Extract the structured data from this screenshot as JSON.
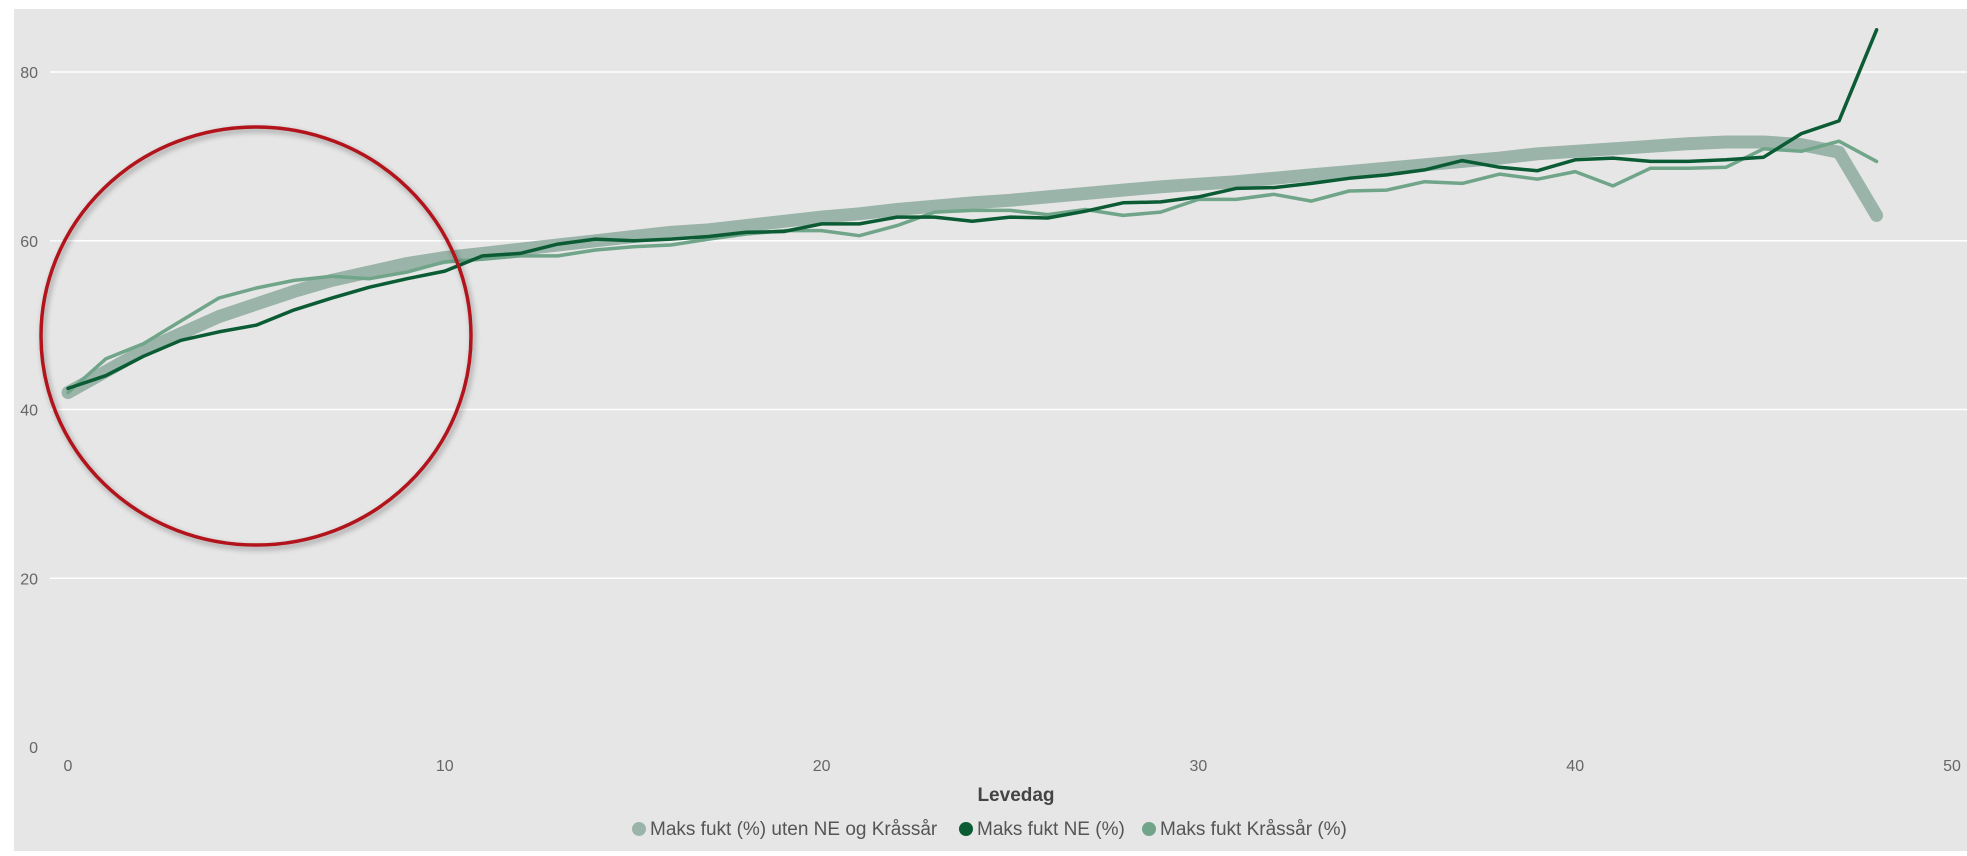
{
  "chart_data": {
    "type": "line",
    "title": "",
    "xlabel": "Levedag",
    "ylabel": "",
    "xlim": [
      0,
      50
    ],
    "ylim": [
      0,
      85
    ],
    "x_ticks": [
      0,
      10,
      20,
      30,
      40,
      50
    ],
    "y_ticks": [
      0,
      20,
      40,
      60,
      80
    ],
    "grid": "horizontal",
    "legend_position": "bottom",
    "series": [
      {
        "name": "Maks fukt (%) uten NE og Kråssår",
        "color": "#9bb4a9",
        "x": [
          0,
          1,
          2,
          3,
          4,
          5,
          6,
          7,
          8,
          9,
          10,
          11,
          12,
          13,
          14,
          15,
          16,
          17,
          18,
          19,
          20,
          21,
          22,
          23,
          24,
          25,
          26,
          27,
          28,
          29,
          30,
          31,
          32,
          33,
          34,
          35,
          36,
          37,
          38,
          39,
          40,
          41,
          42,
          43,
          44,
          45,
          46,
          47,
          48
        ],
        "values": [
          42.0,
          44.5,
          47.0,
          49.0,
          51.0,
          52.5,
          54.0,
          55.3,
          56.3,
          57.3,
          58.0,
          58.5,
          59.0,
          59.5,
          60.0,
          60.5,
          61.0,
          61.3,
          61.8,
          62.3,
          62.8,
          63.2,
          63.7,
          64.1,
          64.5,
          64.8,
          65.2,
          65.6,
          66.0,
          66.4,
          66.7,
          67.0,
          67.4,
          67.8,
          68.2,
          68.6,
          69.0,
          69.4,
          69.8,
          70.3,
          70.6,
          70.9,
          71.2,
          71.5,
          71.7,
          71.7,
          71.4,
          70.5,
          63.0
        ]
      },
      {
        "name": "Maks fukt NE (%)",
        "color": "#0b5c35",
        "x": [
          0,
          1,
          2,
          3,
          4,
          5,
          6,
          7,
          8,
          9,
          10,
          11,
          12,
          13,
          14,
          15,
          16,
          17,
          18,
          19,
          20,
          21,
          22,
          23,
          24,
          25,
          26,
          27,
          28,
          29,
          30,
          31,
          32,
          33,
          34,
          35,
          36,
          37,
          38,
          39,
          40,
          41,
          42,
          43,
          44,
          45,
          46,
          47,
          48
        ],
        "values": [
          42.5,
          44.0,
          46.3,
          48.2,
          49.2,
          50.0,
          51.8,
          53.2,
          54.5,
          55.5,
          56.4,
          58.2,
          58.5,
          59.6,
          60.2,
          60.0,
          60.2,
          60.5,
          61.0,
          61.1,
          62.0,
          62.0,
          62.8,
          62.8,
          62.3,
          62.8,
          62.7,
          63.5,
          64.5,
          64.6,
          65.2,
          66.2,
          66.3,
          66.8,
          67.4,
          67.8,
          68.4,
          69.5,
          68.7,
          68.3,
          69.6,
          69.8,
          69.4,
          69.4,
          69.6,
          69.9,
          72.7,
          74.2,
          85.0
        ]
      },
      {
        "name": "Maks fukt Kråssår (%)",
        "color": "#70a58a",
        "x": [
          0,
          1,
          2,
          3,
          4,
          5,
          6,
          7,
          8,
          9,
          10,
          11,
          12,
          13,
          14,
          15,
          16,
          17,
          18,
          19,
          20,
          21,
          22,
          23,
          24,
          25,
          26,
          27,
          28,
          29,
          30,
          31,
          32,
          33,
          34,
          35,
          36,
          37,
          38,
          39,
          40,
          41,
          42,
          43,
          44,
          45,
          46,
          47,
          48
        ],
        "values": [
          42.0,
          46.0,
          47.8,
          50.5,
          53.2,
          54.4,
          55.3,
          55.8,
          55.5,
          56.3,
          57.5,
          57.8,
          58.2,
          58.2,
          58.9,
          59.3,
          59.5,
          60.2,
          60.8,
          61.2,
          61.2,
          60.6,
          61.8,
          63.4,
          63.6,
          63.6,
          63.1,
          63.7,
          63.0,
          63.4,
          64.9,
          64.9,
          65.5,
          64.7,
          65.9,
          66.0,
          67.0,
          66.8,
          67.9,
          67.3,
          68.2,
          66.5,
          68.6,
          68.6,
          68.7,
          70.9,
          70.6,
          71.8,
          69.4
        ]
      }
    ]
  }
}
